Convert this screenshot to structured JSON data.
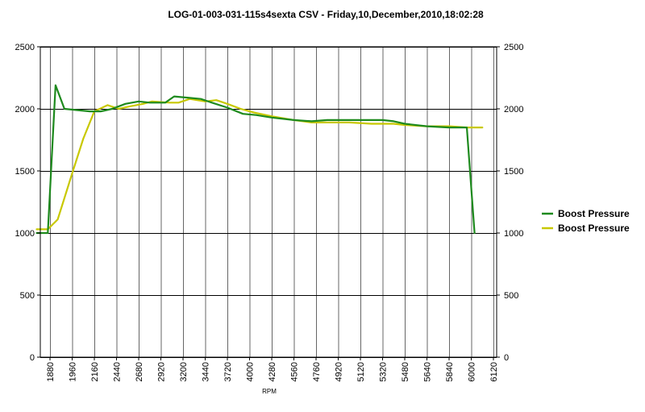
{
  "chart_data": {
    "type": "line",
    "title": "LOG-01-003-031-115s4sexta CSV - Friday,10,December,2010,18:02:28",
    "xlabel": "RPM",
    "ylabel": "",
    "ylim": [
      0,
      2500
    ],
    "y_ticks": [
      "0",
      "500",
      "1000",
      "1500",
      "2000",
      "2500"
    ],
    "y2_ticks": [
      "0",
      "500",
      "1000",
      "1500",
      "2000",
      "2500"
    ],
    "categories": [
      "1880",
      "1960",
      "2160",
      "2440",
      "2680",
      "2920",
      "3200",
      "3440",
      "3720",
      "4000",
      "4280",
      "4560",
      "4760",
      "4920",
      "5120",
      "5320",
      "5480",
      "5640",
      "5840",
      "6000",
      "6120"
    ],
    "grid": true,
    "legend_position": "right",
    "series": [
      {
        "name": "Boost Pressure",
        "color": "#1e8a1e",
        "points": [
          [
            -0.6,
            1000
          ],
          [
            -0.1,
            1000
          ],
          [
            0.25,
            2190
          ],
          [
            0.65,
            2000
          ],
          [
            1.2,
            1990
          ],
          [
            1.8,
            1980
          ],
          [
            2.3,
            1980
          ],
          [
            2.8,
            2000
          ],
          [
            3.4,
            2040
          ],
          [
            4.0,
            2060
          ],
          [
            4.5,
            2050
          ],
          [
            5.2,
            2050
          ],
          [
            5.6,
            2100
          ],
          [
            6.2,
            2090
          ],
          [
            6.8,
            2080
          ],
          [
            7.3,
            2050
          ],
          [
            8.0,
            2010
          ],
          [
            8.7,
            1960
          ],
          [
            9.3,
            1950
          ],
          [
            10.0,
            1930
          ],
          [
            11.0,
            1910
          ],
          [
            11.8,
            1900
          ],
          [
            12.5,
            1910
          ],
          [
            13.5,
            1910
          ],
          [
            14.5,
            1910
          ],
          [
            15.0,
            1910
          ],
          [
            15.5,
            1900
          ],
          [
            16.0,
            1880
          ],
          [
            17.0,
            1860
          ],
          [
            18.0,
            1850
          ],
          [
            18.8,
            1850
          ],
          [
            19.15,
            1000
          ]
        ]
      },
      {
        "name": "Boost Pressure",
        "color": "#c8c800",
        "points": [
          [
            -0.6,
            1030
          ],
          [
            -0.1,
            1030
          ],
          [
            0.35,
            1110
          ],
          [
            1.0,
            1480
          ],
          [
            1.5,
            1760
          ],
          [
            2.0,
            1980
          ],
          [
            2.6,
            2030
          ],
          [
            3.1,
            2000
          ],
          [
            3.6,
            2020
          ],
          [
            4.2,
            2040
          ],
          [
            4.6,
            2060
          ],
          [
            5.4,
            2050
          ],
          [
            5.8,
            2050
          ],
          [
            6.3,
            2080
          ],
          [
            7.0,
            2060
          ],
          [
            7.5,
            2070
          ],
          [
            8.0,
            2040
          ],
          [
            8.6,
            2000
          ],
          [
            9.2,
            1970
          ],
          [
            10.0,
            1940
          ],
          [
            11.0,
            1910
          ],
          [
            11.8,
            1890
          ],
          [
            12.5,
            1890
          ],
          [
            13.5,
            1890
          ],
          [
            14.5,
            1880
          ],
          [
            15.5,
            1880
          ],
          [
            16.0,
            1870
          ],
          [
            17.0,
            1860
          ],
          [
            18.0,
            1860
          ],
          [
            18.8,
            1850
          ],
          [
            19.5,
            1850
          ]
        ]
      }
    ]
  }
}
